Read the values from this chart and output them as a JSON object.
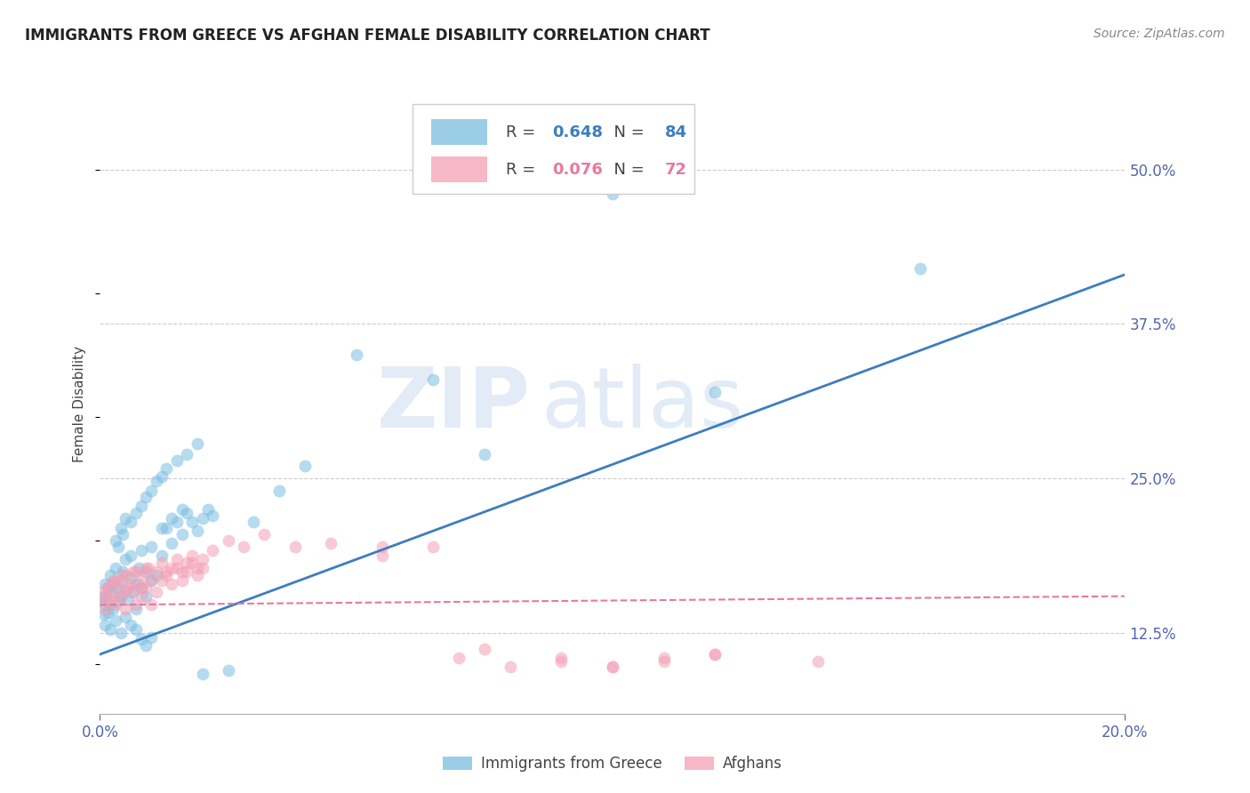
{
  "title": "IMMIGRANTS FROM GREECE VS AFGHAN FEMALE DISABILITY CORRELATION CHART",
  "source": "Source: ZipAtlas.com",
  "ylabel": "Female Disability",
  "ytick_values": [
    0.125,
    0.25,
    0.375,
    0.5
  ],
  "ytick_labels": [
    "12.5%",
    "25.0%",
    "37.5%",
    "50.0%"
  ],
  "xlim": [
    0.0,
    0.2
  ],
  "ylim": [
    0.06,
    0.56
  ],
  "greece_R": 0.648,
  "greece_N": 84,
  "afghan_R": 0.076,
  "afghan_N": 72,
  "greece_color": "#7bbde0",
  "afghan_color": "#f4a0b5",
  "greece_line_color": "#3d7dbf",
  "afghan_line_color": "#e8799a",
  "watermark_zip": "ZIP",
  "watermark_atlas": "atlas",
  "legend_label_greece": "Immigrants from Greece",
  "legend_label_afghan": "Afghans",
  "greece_scatter_x": [
    0.0005,
    0.001,
    0.001,
    0.0015,
    0.002,
    0.002,
    0.0025,
    0.003,
    0.003,
    0.0035,
    0.004,
    0.004,
    0.0045,
    0.005,
    0.005,
    0.0055,
    0.006,
    0.006,
    0.0065,
    0.007,
    0.007,
    0.0075,
    0.008,
    0.008,
    0.009,
    0.009,
    0.01,
    0.01,
    0.011,
    0.012,
    0.013,
    0.014,
    0.015,
    0.016,
    0.017,
    0.018,
    0.019,
    0.02,
    0.021,
    0.022,
    0.0008,
    0.0012,
    0.0018,
    0.0022,
    0.003,
    0.0035,
    0.004,
    0.0045,
    0.005,
    0.006,
    0.007,
    0.008,
    0.009,
    0.01,
    0.011,
    0.012,
    0.013,
    0.015,
    0.017,
    0.019,
    0.001,
    0.002,
    0.003,
    0.004,
    0.005,
    0.006,
    0.007,
    0.008,
    0.009,
    0.01,
    0.012,
    0.014,
    0.016,
    0.02,
    0.025,
    0.03,
    0.035,
    0.04,
    0.05,
    0.065,
    0.075,
    0.1,
    0.12,
    0.16
  ],
  "greece_scatter_y": [
    0.155,
    0.148,
    0.165,
    0.142,
    0.158,
    0.172,
    0.145,
    0.162,
    0.178,
    0.151,
    0.168,
    0.155,
    0.175,
    0.16,
    0.185,
    0.152,
    0.17,
    0.188,
    0.158,
    0.165,
    0.145,
    0.178,
    0.162,
    0.192,
    0.155,
    0.175,
    0.168,
    0.195,
    0.172,
    0.188,
    0.21,
    0.198,
    0.215,
    0.205,
    0.222,
    0.215,
    0.208,
    0.218,
    0.225,
    0.22,
    0.14,
    0.155,
    0.148,
    0.165,
    0.2,
    0.195,
    0.21,
    0.205,
    0.218,
    0.215,
    0.222,
    0.228,
    0.235,
    0.24,
    0.248,
    0.252,
    0.258,
    0.265,
    0.27,
    0.278,
    0.132,
    0.128,
    0.135,
    0.125,
    0.138,
    0.132,
    0.128,
    0.12,
    0.115,
    0.122,
    0.21,
    0.218,
    0.225,
    0.092,
    0.095,
    0.215,
    0.24,
    0.26,
    0.35,
    0.33,
    0.27,
    0.48,
    0.32,
    0.42
  ],
  "afghan_scatter_x": [
    0.0005,
    0.001,
    0.0015,
    0.002,
    0.0025,
    0.003,
    0.0035,
    0.004,
    0.0045,
    0.005,
    0.0055,
    0.006,
    0.0065,
    0.007,
    0.0075,
    0.008,
    0.0085,
    0.009,
    0.0095,
    0.01,
    0.011,
    0.012,
    0.013,
    0.014,
    0.015,
    0.016,
    0.017,
    0.018,
    0.019,
    0.02,
    0.0008,
    0.0015,
    0.0022,
    0.003,
    0.004,
    0.005,
    0.006,
    0.007,
    0.008,
    0.009,
    0.01,
    0.011,
    0.012,
    0.013,
    0.014,
    0.015,
    0.016,
    0.017,
    0.018,
    0.019,
    0.02,
    0.022,
    0.025,
    0.028,
    0.032,
    0.038,
    0.045,
    0.055,
    0.065,
    0.075,
    0.09,
    0.1,
    0.11,
    0.12,
    0.14,
    0.055,
    0.07,
    0.08,
    0.09,
    0.1,
    0.11,
    0.12
  ],
  "afghan_scatter_y": [
    0.158,
    0.145,
    0.162,
    0.152,
    0.168,
    0.148,
    0.165,
    0.155,
    0.172,
    0.145,
    0.162,
    0.158,
    0.175,
    0.148,
    0.165,
    0.155,
    0.172,
    0.162,
    0.178,
    0.148,
    0.158,
    0.168,
    0.175,
    0.165,
    0.178,
    0.168,
    0.175,
    0.182,
    0.172,
    0.178,
    0.152,
    0.162,
    0.155,
    0.168,
    0.158,
    0.172,
    0.165,
    0.175,
    0.162,
    0.178,
    0.168,
    0.175,
    0.182,
    0.172,
    0.178,
    0.185,
    0.175,
    0.182,
    0.188,
    0.178,
    0.185,
    0.192,
    0.2,
    0.195,
    0.205,
    0.195,
    0.198,
    0.188,
    0.195,
    0.112,
    0.105,
    0.098,
    0.105,
    0.108,
    0.102,
    0.195,
    0.105,
    0.098,
    0.102,
    0.098,
    0.102,
    0.108
  ],
  "greece_trend_x": [
    0.0,
    0.2
  ],
  "greece_trend_y": [
    0.108,
    0.415
  ],
  "afghan_trend_x": [
    0.0,
    0.2
  ],
  "afghan_trend_y": [
    0.148,
    0.155
  ]
}
